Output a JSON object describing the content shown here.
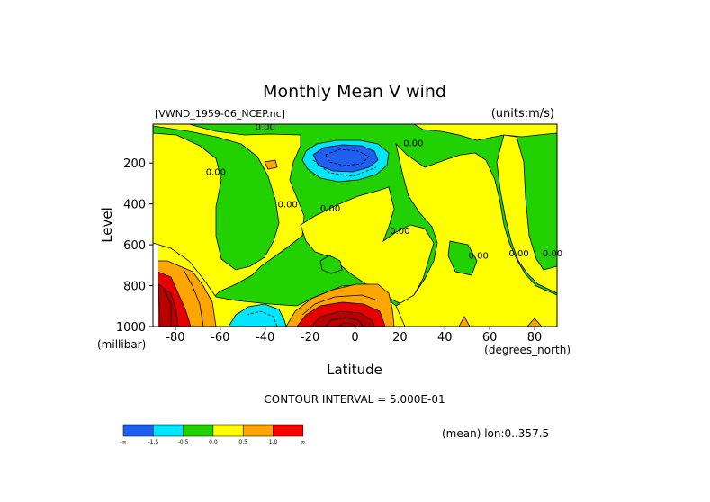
{
  "chart_data": {
    "type": "contour",
    "title": "Monthly Mean V wind",
    "subtitle_left": "[VWND_1959-06_NCEP.nc]",
    "subtitle_right": "(units:m/s)",
    "xlabel": "Latitude",
    "xunits": "(degrees_north)",
    "ylabel": "Level",
    "yunits": "(millibar)",
    "xlim": [
      -90,
      90
    ],
    "ylim": [
      1000,
      10
    ],
    "x_ticks": [
      {
        "value": -80,
        "label": "-80"
      },
      {
        "value": -60,
        "label": "-60"
      },
      {
        "value": -40,
        "label": "-40"
      },
      {
        "value": -20,
        "label": "-20"
      },
      {
        "value": 0,
        "label": "0"
      },
      {
        "value": 20,
        "label": "20"
      },
      {
        "value": 40,
        "label": "40"
      },
      {
        "value": 60,
        "label": "60"
      },
      {
        "value": 80,
        "label": "80"
      }
    ],
    "y_ticks": [
      {
        "value": 200,
        "label": "200"
      },
      {
        "value": 400,
        "label": "400"
      },
      {
        "value": 600,
        "label": "600"
      },
      {
        "value": 800,
        "label": "800"
      },
      {
        "value": 1000,
        "label": "1000"
      }
    ],
    "contour_interval_text": "CONTOUR INTERVAL = 5.000E-01",
    "mean_text": "(mean) lon:0..357.5",
    "contour_label_text": "0.00",
    "contour_labels": [
      {
        "lat": -40,
        "p": 20
      },
      {
        "lat": 26,
        "p": 100
      },
      {
        "lat": -62,
        "p": 240
      },
      {
        "lat": -30,
        "p": 400
      },
      {
        "lat": -11,
        "p": 420
      },
      {
        "lat": 20,
        "p": 530
      },
      {
        "lat": 55,
        "p": 650
      },
      {
        "lat": 73,
        "p": 640
      },
      {
        "lat": 88,
        "p": 640
      }
    ],
    "legend": [
      {
        "label": "-∞",
        "color": "#1e5ff0"
      },
      {
        "label": "-1.5",
        "color": "#00e6ff"
      },
      {
        "label": "-0.5",
        "color": "#22d100"
      },
      {
        "label": "0.0",
        "color": "#ffff00"
      },
      {
        "label": "0.5",
        "color": "#ffa500"
      },
      {
        "label": "1.0",
        "color": "#ff0000"
      },
      {
        "label": "∞",
        "color": "#ffffff"
      }
    ],
    "colors": {
      "blue": "#1e5ff0",
      "cyan": "#00e6ff",
      "green": "#22d100",
      "yellow": "#ffff00",
      "orange": "#ffa500",
      "red": "#e60000",
      "darkred": "#b80000"
    }
  }
}
